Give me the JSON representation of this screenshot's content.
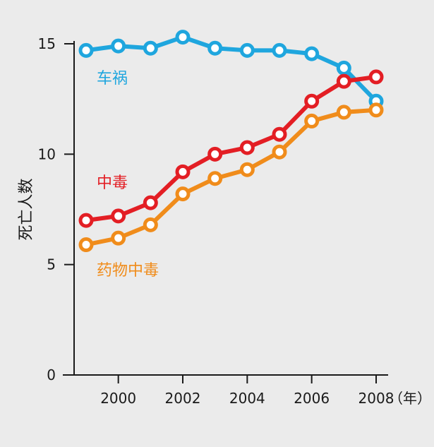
{
  "chart_data": {
    "type": "line",
    "ylabel": "死亡人数",
    "xlabel": "",
    "x_unit_label": "（年）",
    "ylim": [
      0,
      15
    ],
    "yticks": [
      0,
      5,
      10,
      15
    ],
    "xlim": [
      1999,
      2008
    ],
    "xticks": [
      2000,
      2002,
      2004,
      2006,
      2008
    ],
    "x": [
      1999,
      2000,
      2001,
      2002,
      2003,
      2004,
      2005,
      2006,
      2007,
      2008
    ],
    "grid": false,
    "legend": "inline",
    "series": [
      {
        "name": "车祸",
        "color": "#1fa6de",
        "values": [
          14.7,
          14.9,
          14.8,
          15.3,
          14.8,
          14.7,
          14.7,
          14.55,
          13.9,
          12.4
        ]
      },
      {
        "name": "中毒",
        "color": "#e31e24",
        "values": [
          7.0,
          7.2,
          7.8,
          9.2,
          10.0,
          10.3,
          10.9,
          12.4,
          13.3,
          13.5
        ]
      },
      {
        "name": "药物中毒",
        "color": "#f08c1b",
        "values": [
          5.9,
          6.2,
          6.8,
          8.2,
          8.9,
          9.3,
          10.1,
          11.5,
          11.9,
          12.0
        ]
      }
    ]
  }
}
